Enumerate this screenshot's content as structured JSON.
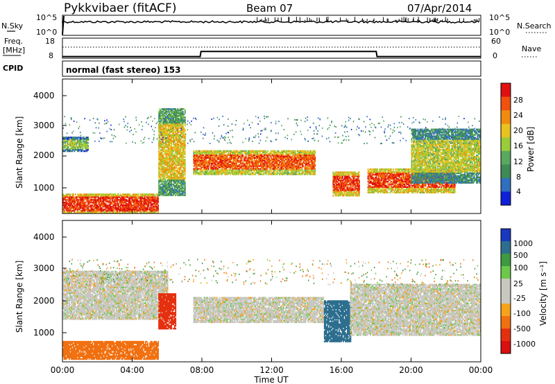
{
  "header": {
    "radar": "Pykkvibaer (fitACF)",
    "beam": "Beam 07",
    "date": "07/Apr/2014"
  },
  "noise_panel": {
    "left_label": "N.Sky",
    "left_ticks": [
      "10^5",
      "10^0"
    ],
    "right_ticks": [
      "10^5",
      "10^0"
    ],
    "right_label": "N.Search"
  },
  "freq_panel": {
    "left_label_top": "Freq.",
    "left_label_unit": "[MHz]",
    "left_ticks": [
      "18",
      "8"
    ],
    "right_ticks": [
      "60",
      "0"
    ],
    "right_label": "Nave"
  },
  "cpid": {
    "label": "CPID",
    "value": "normal (fast stereo) 153"
  },
  "power_panel": {
    "ylabel": "Slant Range [km]",
    "yticks": [
      "4000",
      "3000",
      "2000",
      "1000"
    ],
    "colorbar_label": "Power [dB]",
    "colorbar_ticks": [
      "28",
      "24",
      "20",
      "16",
      "12",
      "8",
      "4"
    ],
    "colors": [
      "#1020d8",
      "#2f6fc0",
      "#3f8a55",
      "#5aa860",
      "#9acb3a",
      "#e8c21f",
      "#f08a10",
      "#f05010",
      "#e01010"
    ]
  },
  "velocity_panel": {
    "ylabel": "Slant Range [km]",
    "yticks": [
      "4000",
      "3000",
      "2000",
      "1000"
    ],
    "colorbar_label": "Velocity [m s⁻¹]",
    "colorbar_ticks": [
      "1000",
      "500",
      "100",
      "25",
      "-25",
      "-100",
      "-500",
      "-1000"
    ],
    "colors": [
      "#1838c0",
      "#2d6e8e",
      "#3e9a40",
      "#6cc84a",
      "#c8c8c0",
      "#c8c8c0",
      "#f5a21c",
      "#f07010",
      "#e53010",
      "#d81010"
    ]
  },
  "xaxis": {
    "label": "Time UT",
    "ticks": [
      "00:00",
      "04:00",
      "08:00",
      "12:00",
      "16:00",
      "20:00",
      "00:00"
    ]
  },
  "chart_data": {
    "type": "heatmap",
    "title": "Pykkvibaer (fitACF)  Beam 07  07/Apr/2014",
    "xlabel": "Time UT",
    "ylabel": "Slant Range [km]",
    "xlim_hours": [
      0,
      24
    ],
    "ylim_km": [
      180,
      4600
    ],
    "panels": [
      "N.Sky / N.Search",
      "Freq. / Nave",
      "CPID",
      "Power [dB]",
      "Velocity [m s-1]"
    ],
    "freq_mhz": [
      {
        "t": 0.0,
        "v": 8.0
      },
      {
        "t": 7.9,
        "v": 8.0
      },
      {
        "t": 7.95,
        "v": 11.0
      },
      {
        "t": 18.0,
        "v": 11.0
      },
      {
        "t": 18.05,
        "v": 8.0
      },
      {
        "t": 24.0,
        "v": 8.0
      }
    ],
    "power_bands": [
      {
        "t0": 0.0,
        "t1": 1.5,
        "r0": 2300,
        "r1": 2600,
        "dB": 14
      },
      {
        "t0": 0.0,
        "t1": 5.5,
        "r0": 250,
        "r1": 700,
        "dB": 26
      },
      {
        "t0": 5.5,
        "t1": 7.0,
        "r0": 1300,
        "r1": 3100,
        "dB": 18
      },
      {
        "t0": 7.5,
        "t1": 14.5,
        "r0": 1600,
        "r1": 2100,
        "dB": 24
      },
      {
        "t0": 15.5,
        "t1": 17.0,
        "r0": 900,
        "r1": 1400,
        "dB": 26
      },
      {
        "t0": 17.5,
        "t1": 22.5,
        "r0": 1000,
        "r1": 1500,
        "dB": 25
      },
      {
        "t0": 20.0,
        "t1": 24.0,
        "r0": 1500,
        "r1": 2600,
        "dB": 16
      }
    ],
    "velocity_bands": [
      {
        "t0": 0.0,
        "t1": 5.5,
        "r0": 250,
        "r1": 800,
        "v": -150
      },
      {
        "t0": 0.0,
        "t1": 6.0,
        "r0": 1500,
        "r1": 3000,
        "v": 0
      },
      {
        "t0": 5.5,
        "t1": 6.5,
        "r0": 1200,
        "r1": 2300,
        "v": -700
      },
      {
        "t0": 7.5,
        "t1": 15.0,
        "r0": 1400,
        "r1": 2200,
        "v": 0
      },
      {
        "t0": 15.0,
        "t1": 16.5,
        "r0": 800,
        "r1": 2100,
        "v": 600
      },
      {
        "t0": 16.5,
        "t1": 24.0,
        "r0": 1000,
        "r1": 2600,
        "v": 0
      }
    ]
  }
}
